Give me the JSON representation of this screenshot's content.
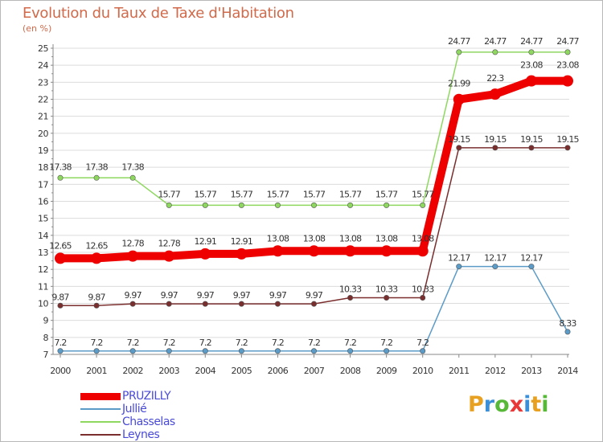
{
  "title": "Evolution du Taux de Taxe d'Habitation",
  "subtitle": "(en %)",
  "logo": {
    "letters": [
      "P",
      "r",
      "o",
      "x",
      "i",
      "t",
      "i"
    ],
    "colors": [
      "#e8a020",
      "#3a8fd8",
      "#58b838",
      "#e83838",
      "#3a8fd8",
      "#e8a020",
      "#58b838"
    ]
  },
  "chart_data": {
    "type": "line",
    "x": [
      "2000",
      "2001",
      "2002",
      "2003",
      "2004",
      "2005",
      "2006",
      "2007",
      "2008",
      "2009",
      "2010",
      "2011",
      "2012",
      "2013",
      "2014"
    ],
    "ylim": [
      7,
      25
    ],
    "yticks": [
      "7",
      "8",
      "9",
      "10",
      "11",
      "12",
      "13",
      "14",
      "15",
      "16",
      "17",
      "18",
      "19",
      "20",
      "21",
      "22",
      "23",
      "24",
      "25"
    ],
    "grid": "horizontal",
    "legend_position": "bottom-left",
    "series": [
      {
        "name": "PRUZILLY",
        "color": "#ee0000",
        "values": [
          12.65,
          12.65,
          12.78,
          12.78,
          12.91,
          12.91,
          13.08,
          13.08,
          13.08,
          13.08,
          13.08,
          21.99,
          22.3,
          23.08,
          23.08
        ],
        "labels": [
          "12.65",
          "12.65",
          "12.78",
          "12.78",
          "12.91",
          "12.91",
          "13.08",
          "13.08",
          "13.08",
          "13.08",
          "13.08",
          "21.99",
          "22.3",
          "23.08",
          "23.08"
        ]
      },
      {
        "name": "Jullié",
        "color": "#5b9bc8",
        "values": [
          7.2,
          7.2,
          7.2,
          7.2,
          7.2,
          7.2,
          7.2,
          7.2,
          7.2,
          7.2,
          7.2,
          12.17,
          12.17,
          12.17,
          8.33
        ],
        "labels": [
          "7.2",
          "7.2",
          "7.2",
          "7.2",
          "7.2",
          "7.2",
          "7.2",
          "7.2",
          "7.2",
          "7.2",
          "7.2",
          "12.17",
          "12.17",
          "12.17",
          "8.33"
        ]
      },
      {
        "name": "Chasselas",
        "color": "#8fd860",
        "values": [
          17.38,
          17.38,
          17.38,
          15.77,
          15.77,
          15.77,
          15.77,
          15.77,
          15.77,
          15.77,
          15.77,
          24.77,
          24.77,
          24.77,
          24.77
        ],
        "labels": [
          "17.38",
          "17.38",
          "17.38",
          "15.77",
          "15.77",
          "15.77",
          "15.77",
          "15.77",
          "15.77",
          "15.77",
          "15.77",
          "24.77",
          "24.77",
          "24.77",
          "24.77"
        ]
      },
      {
        "name": "Leynes",
        "color": "#7a2e2e",
        "values": [
          9.87,
          9.87,
          9.97,
          9.97,
          9.97,
          9.97,
          9.97,
          9.97,
          10.33,
          10.33,
          10.33,
          19.15,
          19.15,
          19.15,
          19.15
        ],
        "labels": [
          "9.87",
          "9.87",
          "9.97",
          "9.97",
          "9.97",
          "9.97",
          "9.97",
          "9.97",
          "10.33",
          "10.33",
          "10.33",
          "19.15",
          "19.15",
          "19.15",
          "19.15"
        ]
      }
    ]
  }
}
